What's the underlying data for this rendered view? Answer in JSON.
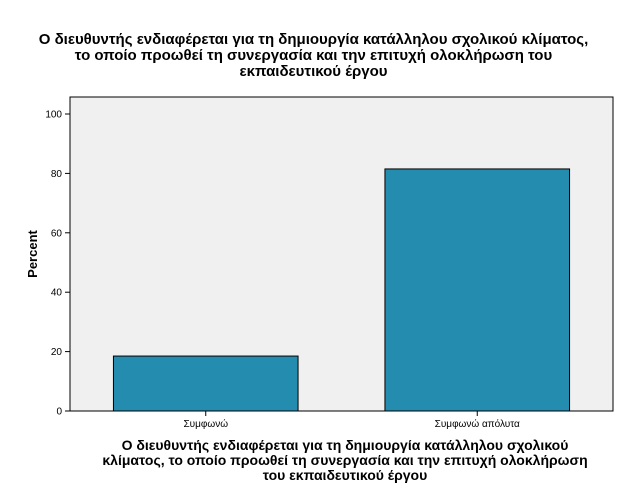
{
  "chart_data": {
    "type": "bar",
    "title_lines": [
      "Ο διευθυντής ενδιαφέρεται για τη δημιουργία κατάλληλου σχολικού κλίματος,",
      "το οποίο προωθεί τη συνεργασία και την επιτυχή ολοκλήρωση του",
      "εκπαιδευτικού έργου"
    ],
    "xlabel_lines": [
      "Ο διευθυντής ενδιαφέρεται για τη δημιουργία κατάλληλου σχολικού",
      "κλίματος, το οποίο προωθεί τη συνεργασία και την επιτυχή ολοκλήρωση",
      "του εκπαιδευτικού έργου"
    ],
    "ylabel": "Percent",
    "categories": [
      "Συμφωνώ",
      "Συμφωνώ απόλυτα"
    ],
    "values": [
      18.5,
      81.5
    ],
    "ylim": [
      0,
      100
    ],
    "yticks": [
      0,
      20,
      40,
      60,
      80,
      100
    ],
    "bar_color": "#248CAF",
    "plot_background": "#F0F0F0",
    "grid": false,
    "legend": "none"
  }
}
